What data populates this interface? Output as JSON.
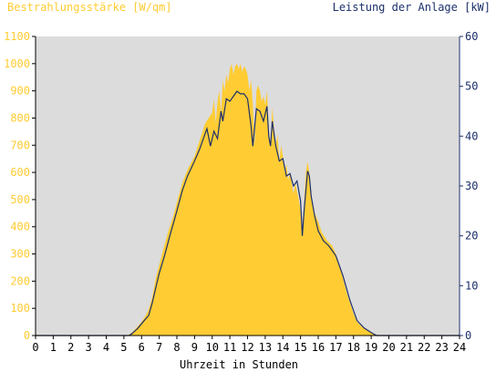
{
  "chart_data": {
    "type": "area",
    "title_left": "Bestrahlungsstärke [W/qm]",
    "title_right": "Leistung der Anlage [kW]",
    "xlabel": "Uhrzeit in Stunden",
    "xlim": [
      0,
      24
    ],
    "x_ticks": [
      "0",
      "1",
      "2",
      "3",
      "4",
      "5",
      "6",
      "7",
      "8",
      "9",
      "10",
      "11",
      "12",
      "13",
      "14",
      "15",
      "16",
      "17",
      "18",
      "19",
      "20",
      "21",
      "22",
      "23",
      "24"
    ],
    "y_left_lim": [
      0,
      1100
    ],
    "y_left_ticks": [
      "0",
      "100",
      "200",
      "300",
      "400",
      "500",
      "600",
      "700",
      "800",
      "900",
      "1000",
      "1100"
    ],
    "y_right_lim": [
      0,
      60
    ],
    "y_right_ticks": [
      "0",
      "10",
      "20",
      "30",
      "40",
      "50",
      "60"
    ],
    "grid": false,
    "colors": {
      "plot_background": "#dcdcdc",
      "irradiance_fill": "#ffcc33",
      "power_line": "#1c2f6b",
      "left_axis_text": "#ffcc33",
      "right_axis_text": "#1c2f6b"
    },
    "series": [
      {
        "axis": "left",
        "style": "area",
        "unit": "W/qm",
        "points": [
          [
            0,
            0
          ],
          [
            5.2,
            0
          ],
          [
            5.4,
            8
          ],
          [
            5.6,
            20
          ],
          [
            5.8,
            35
          ],
          [
            6.0,
            50
          ],
          [
            6.2,
            70
          ],
          [
            6.4,
            95
          ],
          [
            6.6,
            140
          ],
          [
            6.8,
            210
          ],
          [
            7.0,
            260
          ],
          [
            7.2,
            310
          ],
          [
            7.5,
            380
          ],
          [
            7.8,
            440
          ],
          [
            8.0,
            490
          ],
          [
            8.3,
            560
          ],
          [
            8.6,
            610
          ],
          [
            9.0,
            660
          ],
          [
            9.2,
            700
          ],
          [
            9.4,
            740
          ],
          [
            9.6,
            780
          ],
          [
            9.8,
            800
          ],
          [
            10.0,
            820
          ],
          [
            10.1,
            870
          ],
          [
            10.2,
            780
          ],
          [
            10.3,
            860
          ],
          [
            10.4,
            900
          ],
          [
            10.5,
            820
          ],
          [
            10.6,
            940
          ],
          [
            10.7,
            900
          ],
          [
            10.8,
            960
          ],
          [
            10.9,
            930
          ],
          [
            11.0,
            980
          ],
          [
            11.1,
            1000
          ],
          [
            11.2,
            960
          ],
          [
            11.3,
            990
          ],
          [
            11.4,
            1000
          ],
          [
            11.5,
            980
          ],
          [
            11.6,
            1000
          ],
          [
            11.7,
            970
          ],
          [
            11.8,
            990
          ],
          [
            11.9,
            980
          ],
          [
            12.0,
            960
          ],
          [
            12.1,
            900
          ],
          [
            12.2,
            940
          ],
          [
            12.3,
            850
          ],
          [
            12.4,
            700
          ],
          [
            12.5,
            900
          ],
          [
            12.6,
            920
          ],
          [
            12.7,
            900
          ],
          [
            12.8,
            860
          ],
          [
            12.9,
            880
          ],
          [
            13.0,
            850
          ],
          [
            13.1,
            900
          ],
          [
            13.2,
            760
          ],
          [
            13.3,
            700
          ],
          [
            13.4,
            840
          ],
          [
            13.5,
            760
          ],
          [
            13.6,
            700
          ],
          [
            13.7,
            740
          ],
          [
            13.8,
            640
          ],
          [
            13.9,
            700
          ],
          [
            14.0,
            660
          ],
          [
            14.1,
            600
          ],
          [
            14.2,
            630
          ],
          [
            14.3,
            570
          ],
          [
            14.4,
            600
          ],
          [
            14.5,
            560
          ],
          [
            14.6,
            520
          ],
          [
            14.7,
            560
          ],
          [
            14.8,
            530
          ],
          [
            14.9,
            500
          ],
          [
            15.0,
            460
          ],
          [
            15.1,
            400
          ],
          [
            15.2,
            480
          ],
          [
            15.3,
            600
          ],
          [
            15.4,
            640
          ],
          [
            15.5,
            600
          ],
          [
            15.6,
            520
          ],
          [
            15.7,
            470
          ],
          [
            15.8,
            450
          ],
          [
            16.0,
            420
          ],
          [
            16.2,
            380
          ],
          [
            16.5,
            350
          ],
          [
            16.8,
            330
          ],
          [
            17.0,
            300
          ],
          [
            17.2,
            260
          ],
          [
            17.4,
            210
          ],
          [
            17.6,
            160
          ],
          [
            17.8,
            120
          ],
          [
            18.0,
            80
          ],
          [
            18.2,
            50
          ],
          [
            18.5,
            30
          ],
          [
            18.8,
            20
          ],
          [
            19.0,
            10
          ],
          [
            19.3,
            3
          ],
          [
            19.5,
            0
          ],
          [
            24,
            0
          ]
        ]
      },
      {
        "axis": "right",
        "style": "line",
        "unit": "kW",
        "points": [
          [
            0,
            0
          ],
          [
            5.3,
            0
          ],
          [
            5.5,
            0.5
          ],
          [
            5.8,
            1.5
          ],
          [
            6.1,
            2.8
          ],
          [
            6.4,
            4.0
          ],
          [
            6.6,
            6.5
          ],
          [
            6.8,
            9.5
          ],
          [
            7.0,
            12.5
          ],
          [
            7.3,
            16.0
          ],
          [
            7.6,
            20.0
          ],
          [
            8.0,
            25.0
          ],
          [
            8.3,
            29.0
          ],
          [
            8.6,
            32.0
          ],
          [
            9.0,
            35.0
          ],
          [
            9.3,
            37.5
          ],
          [
            9.5,
            39.5
          ],
          [
            9.7,
            41.5
          ],
          [
            9.9,
            38.0
          ],
          [
            10.1,
            41.0
          ],
          [
            10.3,
            39.5
          ],
          [
            10.5,
            45.0
          ],
          [
            10.6,
            43.0
          ],
          [
            10.8,
            47.5
          ],
          [
            11.0,
            47.0
          ],
          [
            11.2,
            48.0
          ],
          [
            11.4,
            49.0
          ],
          [
            11.6,
            48.5
          ],
          [
            11.8,
            48.5
          ],
          [
            12.0,
            47.5
          ],
          [
            12.2,
            42.0
          ],
          [
            12.3,
            38.0
          ],
          [
            12.5,
            45.5
          ],
          [
            12.7,
            45.0
          ],
          [
            12.9,
            43.0
          ],
          [
            13.1,
            46.0
          ],
          [
            13.2,
            40.0
          ],
          [
            13.3,
            38.0
          ],
          [
            13.4,
            43.0
          ],
          [
            13.6,
            38.0
          ],
          [
            13.8,
            35.0
          ],
          [
            14.0,
            35.5
          ],
          [
            14.2,
            32.0
          ],
          [
            14.4,
            32.5
          ],
          [
            14.6,
            30.0
          ],
          [
            14.8,
            31.0
          ],
          [
            15.0,
            27.0
          ],
          [
            15.1,
            20.0
          ],
          [
            15.2,
            25.0
          ],
          [
            15.4,
            33.0
          ],
          [
            15.5,
            32.0
          ],
          [
            15.6,
            28.0
          ],
          [
            15.8,
            24.0
          ],
          [
            16.0,
            21.0
          ],
          [
            16.3,
            19.0
          ],
          [
            16.6,
            18.0
          ],
          [
            17.0,
            16.0
          ],
          [
            17.4,
            12.0
          ],
          [
            17.8,
            7.0
          ],
          [
            18.2,
            3.0
          ],
          [
            18.6,
            1.5
          ],
          [
            19.0,
            0.6
          ],
          [
            19.3,
            0
          ],
          [
            24,
            0
          ]
        ]
      }
    ]
  }
}
